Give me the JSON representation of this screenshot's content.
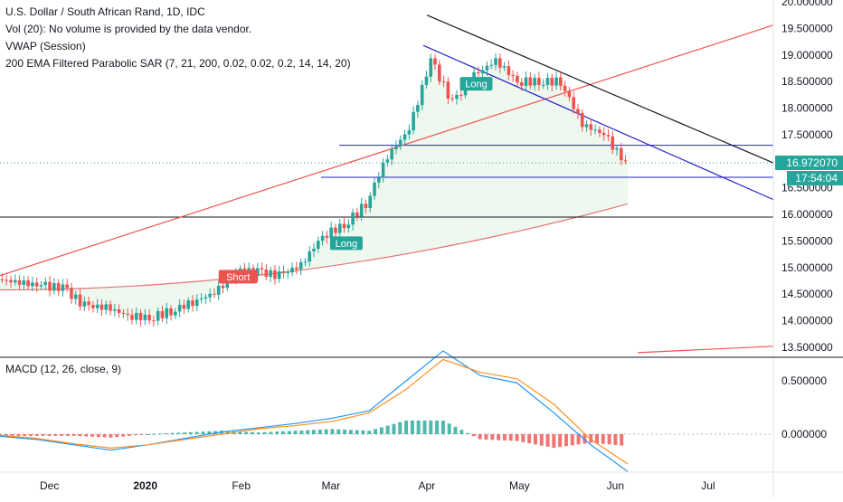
{
  "legend": {
    "title": "U.S. Dollar / South African Rand, 1D, IDC",
    "vol": "Vol (20): No volume is provided by the data vendor.",
    "vwap": "VWAP (Session)",
    "sar": "200 EMA Filtered Parabolic SAR (7, 21, 200, 0.02, 0.02, 0.2, 14, 14, 20)",
    "macd": "MACD (12, 26, close, 9)"
  },
  "price_tag": {
    "last": "16.972070",
    "countdown": "17:54:04"
  },
  "colors": {
    "up": "#26a69a",
    "down": "#ef5350",
    "ema": "#e57373",
    "channel": "#2222cc",
    "macd": "#2196f3",
    "signal": "#ff8f1f",
    "tag": "#26a69a"
  },
  "chart_data": [
    {
      "type": "candlestick",
      "title": "U.S. Dollar / South African Rand, 1D, IDC",
      "y_axis": {
        "ticks": [
          "20.000000",
          "19.500000",
          "19.000000",
          "18.500000",
          "18.000000",
          "17.500000",
          "17.000000",
          "16.500000",
          "16.000000",
          "15.500000",
          "15.000000",
          "14.500000",
          "14.000000",
          "13.500000"
        ],
        "range": [
          13.4,
          20.0
        ],
        "side": "right"
      },
      "x_axis": {
        "ticks": [
          "Dec",
          "2020",
          "Feb",
          "Mar",
          "Apr",
          "May",
          "Jun",
          "Jul"
        ]
      },
      "close_series": [
        {
          "date": "2019-11-15",
          "close": 14.78
        },
        {
          "date": "2019-11-22",
          "close": 14.72
        },
        {
          "date": "2019-11-29",
          "close": 14.66
        },
        {
          "date": "2019-12-06",
          "close": 14.62
        },
        {
          "date": "2019-12-13",
          "close": 14.28
        },
        {
          "date": "2019-12-20",
          "close": 14.25
        },
        {
          "date": "2019-12-27",
          "close": 14.1
        },
        {
          "date": "2020-01-03",
          "close": 14.05
        },
        {
          "date": "2020-01-10",
          "close": 14.18
        },
        {
          "date": "2020-01-17",
          "close": 14.35
        },
        {
          "date": "2020-01-24",
          "close": 14.52
        },
        {
          "date": "2020-01-31",
          "close": 14.9
        },
        {
          "date": "2020-02-07",
          "close": 14.92
        },
        {
          "date": "2020-02-14",
          "close": 14.85
        },
        {
          "date": "2020-02-21",
          "close": 15.05
        },
        {
          "date": "2020-02-28",
          "close": 15.6
        },
        {
          "date": "2020-03-06",
          "close": 15.8
        },
        {
          "date": "2020-03-13",
          "close": 16.2
        },
        {
          "date": "2020-03-20",
          "close": 17.1
        },
        {
          "date": "2020-03-27",
          "close": 17.6
        },
        {
          "date": "2020-04-03",
          "close": 18.9
        },
        {
          "date": "2020-04-10",
          "close": 18.1
        },
        {
          "date": "2020-04-17",
          "close": 18.6
        },
        {
          "date": "2020-04-24",
          "close": 18.9
        },
        {
          "date": "2020-05-01",
          "close": 18.5
        },
        {
          "date": "2020-05-08",
          "close": 18.5
        },
        {
          "date": "2020-05-15",
          "close": 18.5
        },
        {
          "date": "2020-05-22",
          "close": 17.7
        },
        {
          "date": "2020-05-29",
          "close": 17.5
        },
        {
          "date": "2020-06-05",
          "close": 16.97
        }
      ],
      "annotations": [
        {
          "label": "Short",
          "date": "2020-01-31",
          "price": 14.82,
          "color": "#ef5350"
        },
        {
          "label": "Long",
          "date": "2020-03-06",
          "price": 15.45,
          "color": "#26a69a"
        },
        {
          "label": "Long",
          "date": "2020-04-17",
          "price": 18.45,
          "color": "#26a69a"
        }
      ],
      "horizontal_lines": [
        17.3,
        16.7,
        15.95
      ],
      "last_price": 16.97207
    },
    {
      "type": "line",
      "title": "MACD (12, 26, close, 9)",
      "y_axis": {
        "ticks": [
          "0.500000",
          "0.000000"
        ]
      },
      "series": [
        {
          "name": "MACD",
          "values": [
            -0.02,
            -0.05,
            -0.1,
            -0.15,
            -0.1,
            -0.04,
            0.02,
            0.06,
            0.1,
            0.15,
            0.22,
            0.5,
            0.78,
            0.55,
            0.48,
            0.2,
            -0.1,
            -0.35
          ]
        },
        {
          "name": "Signal",
          "values": [
            -0.01,
            -0.04,
            -0.09,
            -0.13,
            -0.1,
            -0.05,
            0.0,
            0.05,
            0.08,
            0.12,
            0.2,
            0.42,
            0.7,
            0.58,
            0.52,
            0.28,
            -0.05,
            -0.28
          ]
        }
      ]
    }
  ]
}
